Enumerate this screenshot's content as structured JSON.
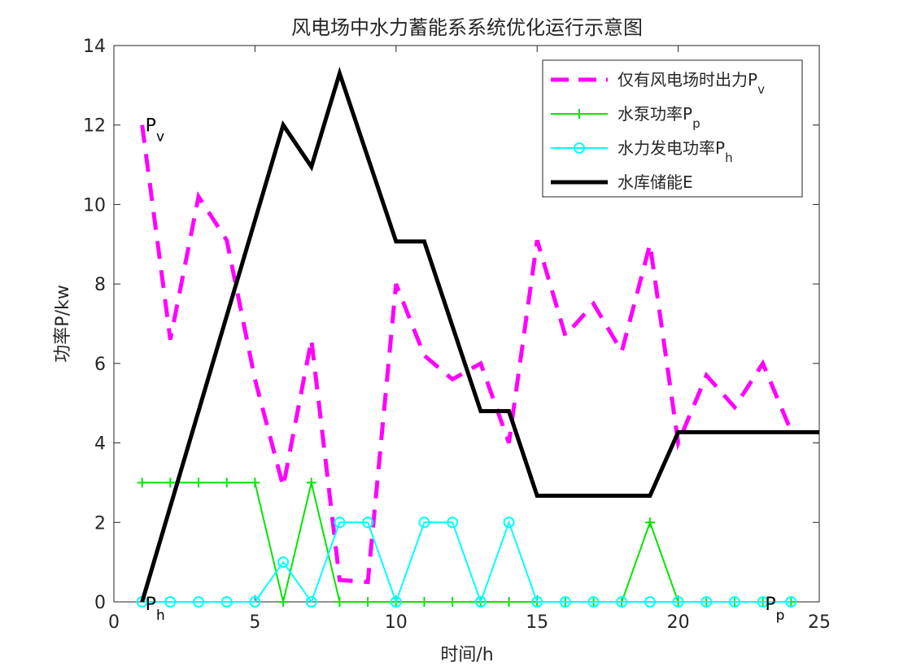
{
  "chart_data": {
    "type": "line",
    "title": "风电场中水力蓄能系系统优化运行示意图",
    "xlabel": "时间/h",
    "ylabel": "功率P/kw",
    "xlim": [
      0,
      25
    ],
    "ylim": [
      0,
      14
    ],
    "xticks": [
      0,
      5,
      10,
      15,
      20,
      25
    ],
    "yticks": [
      0,
      2,
      4,
      6,
      8,
      10,
      12,
      14
    ],
    "grid": false,
    "legend_position": "top-right",
    "series": [
      {
        "name": "仅有风电场时出力Pv",
        "legend_main": "仅有风电场时出力P",
        "legend_sub": "v",
        "style": "dashed",
        "color": "#ff00ff",
        "x": [
          1,
          2,
          3,
          4,
          5,
          6,
          7,
          8,
          9,
          10,
          11,
          12,
          13,
          14,
          15,
          16,
          17,
          18,
          19,
          20,
          21,
          22,
          23,
          24
        ],
        "values": [
          12,
          6.6,
          10.2,
          9.1,
          5.6,
          2.9,
          6.6,
          0.55,
          0.5,
          8,
          6.2,
          5.6,
          6,
          4,
          9.1,
          6.7,
          7.5,
          6.3,
          9,
          4,
          5.7,
          4.9,
          6,
          4.3
        ]
      },
      {
        "name": "水泵功率Pp",
        "legend_main": "水泵功率P",
        "legend_sub": "p",
        "style": "solid",
        "marker": "plus",
        "color": "#00e600",
        "x": [
          1,
          2,
          3,
          4,
          5,
          6,
          7,
          8,
          9,
          10,
          11,
          12,
          13,
          14,
          15,
          16,
          17,
          18,
          19,
          20,
          21,
          22,
          23,
          24
        ],
        "values": [
          3,
          3,
          3,
          3,
          3,
          0,
          3,
          0,
          0,
          0,
          0,
          0,
          0,
          0,
          0,
          0,
          0,
          0,
          2,
          0,
          0,
          0,
          0,
          0
        ]
      },
      {
        "name": "水力发电功率Ph",
        "legend_main": "水力发电功率P",
        "legend_sub": "h",
        "style": "solid",
        "marker": "circle",
        "color": "#00ffff",
        "x": [
          1,
          2,
          3,
          4,
          5,
          6,
          7,
          8,
          9,
          10,
          11,
          12,
          13,
          14,
          15,
          16,
          17,
          18,
          19,
          20,
          21,
          22,
          23,
          24
        ],
        "values": [
          0,
          0,
          0,
          0,
          0,
          1,
          0,
          2,
          2,
          0,
          2,
          2,
          0,
          2,
          0,
          0,
          0,
          0,
          0,
          0,
          0,
          0,
          0,
          0
        ]
      },
      {
        "name": "水库储能E",
        "legend_main": "水库储能E",
        "legend_sub": "",
        "style": "solid-thick",
        "color": "#000000",
        "x": [
          1,
          6,
          7,
          8,
          10,
          11,
          13,
          14,
          15,
          16,
          17,
          18,
          19,
          20,
          21,
          22,
          23,
          24,
          25
        ],
        "values": [
          0,
          12,
          10.95,
          13.3,
          9.07,
          9.07,
          4.8,
          4.8,
          2.67,
          2.67,
          2.67,
          2.67,
          2.67,
          4.27,
          4.27,
          4.27,
          4.27,
          4.27,
          4.27
        ]
      }
    ],
    "annotations": [
      {
        "main": "P",
        "sub": "v",
        "x": 1,
        "y": 12
      },
      {
        "main": "P",
        "sub": "h",
        "x": 1,
        "y": 0
      },
      {
        "main": "P",
        "sub": "p",
        "x": 24,
        "y": 0
      }
    ]
  }
}
